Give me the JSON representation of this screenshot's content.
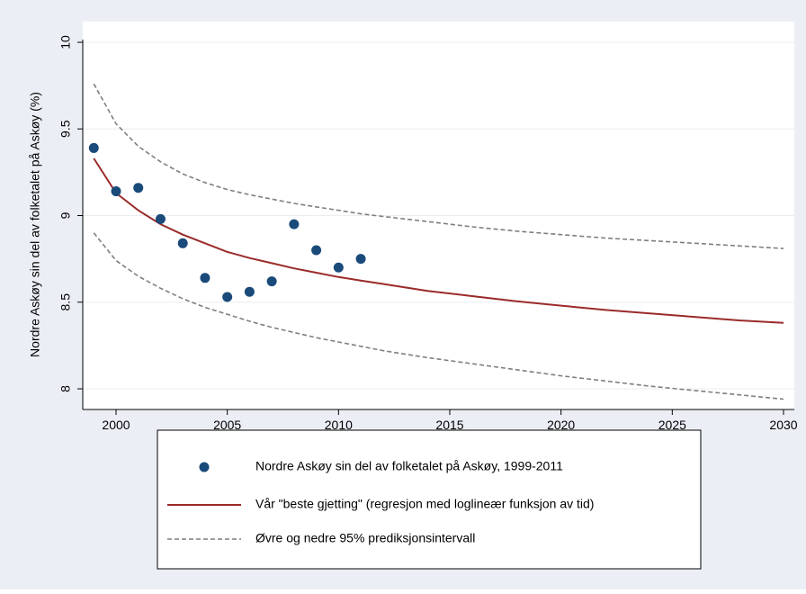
{
  "chart_data": {
    "type": "scatter",
    "ylabel": "Nordre Askøy sin del av folketalet på Askøy (%)",
    "xlabel": "",
    "xlim": [
      1999,
      2030
    ],
    "ylim": [
      7.94,
      10.0
    ],
    "x_ticks": [
      "2000",
      "2005",
      "2010",
      "2015",
      "2020",
      "2025",
      "2030"
    ],
    "y_ticks": [
      "8",
      "8.5",
      "9",
      "9.5",
      "10"
    ],
    "grid": "horizontal",
    "legend_position": "bottom",
    "colors": {
      "background": "#ebeff5",
      "plot_background": "#ffffff",
      "points": "#1a4a7a",
      "fit_line": "#9b2a2a",
      "interval_line": "#7f7f7f",
      "grid": "#e9eef3"
    },
    "series": [
      {
        "name": "Nordre Askøy sin del av folketalet på Askøy, 1999-2011",
        "kind": "scatter",
        "x": [
          1999,
          2000,
          2001,
          2002,
          2003,
          2004,
          2005,
          2006,
          2007,
          2008,
          2009,
          2010,
          2011
        ],
        "y": [
          9.39,
          9.14,
          9.16,
          8.98,
          8.84,
          8.64,
          8.53,
          8.56,
          8.62,
          8.95,
          8.8,
          8.7,
          8.75
        ]
      },
      {
        "name": "Vår \"beste gjetting\" (regresjon med loglineær funksjon av tid)",
        "kind": "line",
        "x": [
          1999,
          2000,
          2001,
          2002,
          2003,
          2004,
          2005,
          2006,
          2007,
          2008,
          2009,
          2010,
          2011,
          2012,
          2014,
          2016,
          2018,
          2020,
          2022,
          2024,
          2026,
          2028,
          2030
        ],
        "y": [
          9.33,
          9.13,
          9.03,
          8.95,
          8.89,
          8.84,
          8.79,
          8.755,
          8.725,
          8.695,
          8.67,
          8.645,
          8.625,
          8.605,
          8.565,
          8.535,
          8.505,
          8.48,
          8.455,
          8.435,
          8.415,
          8.395,
          8.38
        ]
      },
      {
        "name": "Øvre og nedre 95% prediksjonsintervall",
        "kind": "dashed",
        "x": [
          1999,
          2000,
          2001,
          2002,
          2003,
          2004,
          2005,
          2006,
          2007,
          2008,
          2009,
          2010,
          2011,
          2012,
          2014,
          2016,
          2018,
          2020,
          2022,
          2024,
          2026,
          2028,
          2030
        ],
        "y_upper": [
          9.76,
          9.53,
          9.4,
          9.31,
          9.24,
          9.19,
          9.15,
          9.12,
          9.095,
          9.07,
          9.05,
          9.03,
          9.01,
          8.995,
          8.965,
          8.935,
          8.91,
          8.89,
          8.87,
          8.855,
          8.84,
          8.825,
          8.81
        ],
        "y_lower": [
          8.9,
          8.74,
          8.65,
          8.58,
          8.52,
          8.47,
          8.43,
          8.39,
          8.355,
          8.325,
          8.295,
          8.27,
          8.245,
          8.22,
          8.18,
          8.145,
          8.11,
          8.075,
          8.045,
          8.015,
          7.99,
          7.965,
          7.94
        ]
      }
    ]
  }
}
